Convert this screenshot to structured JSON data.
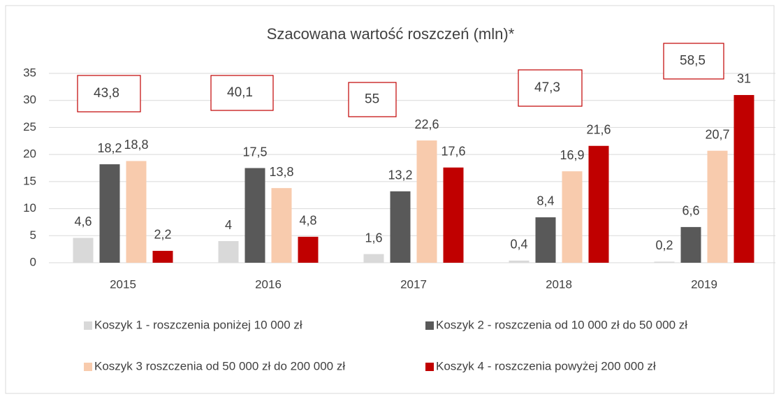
{
  "chart_data": {
    "type": "bar",
    "title": "Szacowana wartość roszczeń (mln)*",
    "categories": [
      "2015",
      "2016",
      "2017",
      "2018",
      "2019"
    ],
    "series": [
      {
        "name": "Koszyk 1 - roszczenia poniżej 10 000 zł",
        "color": "#d9d9d9",
        "values": [
          4.6,
          4,
          1.6,
          0.4,
          0.2
        ],
        "value_labels": [
          "4,6",
          "4",
          "1,6",
          "0,4",
          "0,2"
        ]
      },
      {
        "name": "Koszyk 2 - roszczenia od 10 000 zł do 50 000 zł",
        "color": "#595959",
        "values": [
          18.2,
          17.5,
          13.2,
          8.4,
          6.6
        ],
        "value_labels": [
          "18,2",
          "17,5",
          "13,2",
          "8,4",
          "6,6"
        ]
      },
      {
        "name": "Koszyk 3 roszczenia od 50 000 zł do 200 000 zł",
        "color": "#f8cbad",
        "values": [
          18.8,
          13.8,
          22.6,
          16.9,
          20.7
        ],
        "value_labels": [
          "18,8",
          "13,8",
          "22,6",
          "16,9",
          "20,7"
        ]
      },
      {
        "name": "Koszyk 4 - roszczenia powyżej 200 000 zł",
        "color": "#c00000",
        "values": [
          2.2,
          4.8,
          17.6,
          21.6,
          31
        ],
        "value_labels": [
          "2,2",
          "4,8",
          "17,6",
          "21,6",
          "31"
        ]
      }
    ],
    "annotations": [
      "43,8",
      "40,1",
      "55",
      "47,3",
      "58,5"
    ],
    "ylim": [
      0,
      35
    ],
    "yticks": [
      0,
      5,
      10,
      15,
      20,
      25,
      30,
      35
    ],
    "grid": true,
    "legend": "bottom"
  }
}
